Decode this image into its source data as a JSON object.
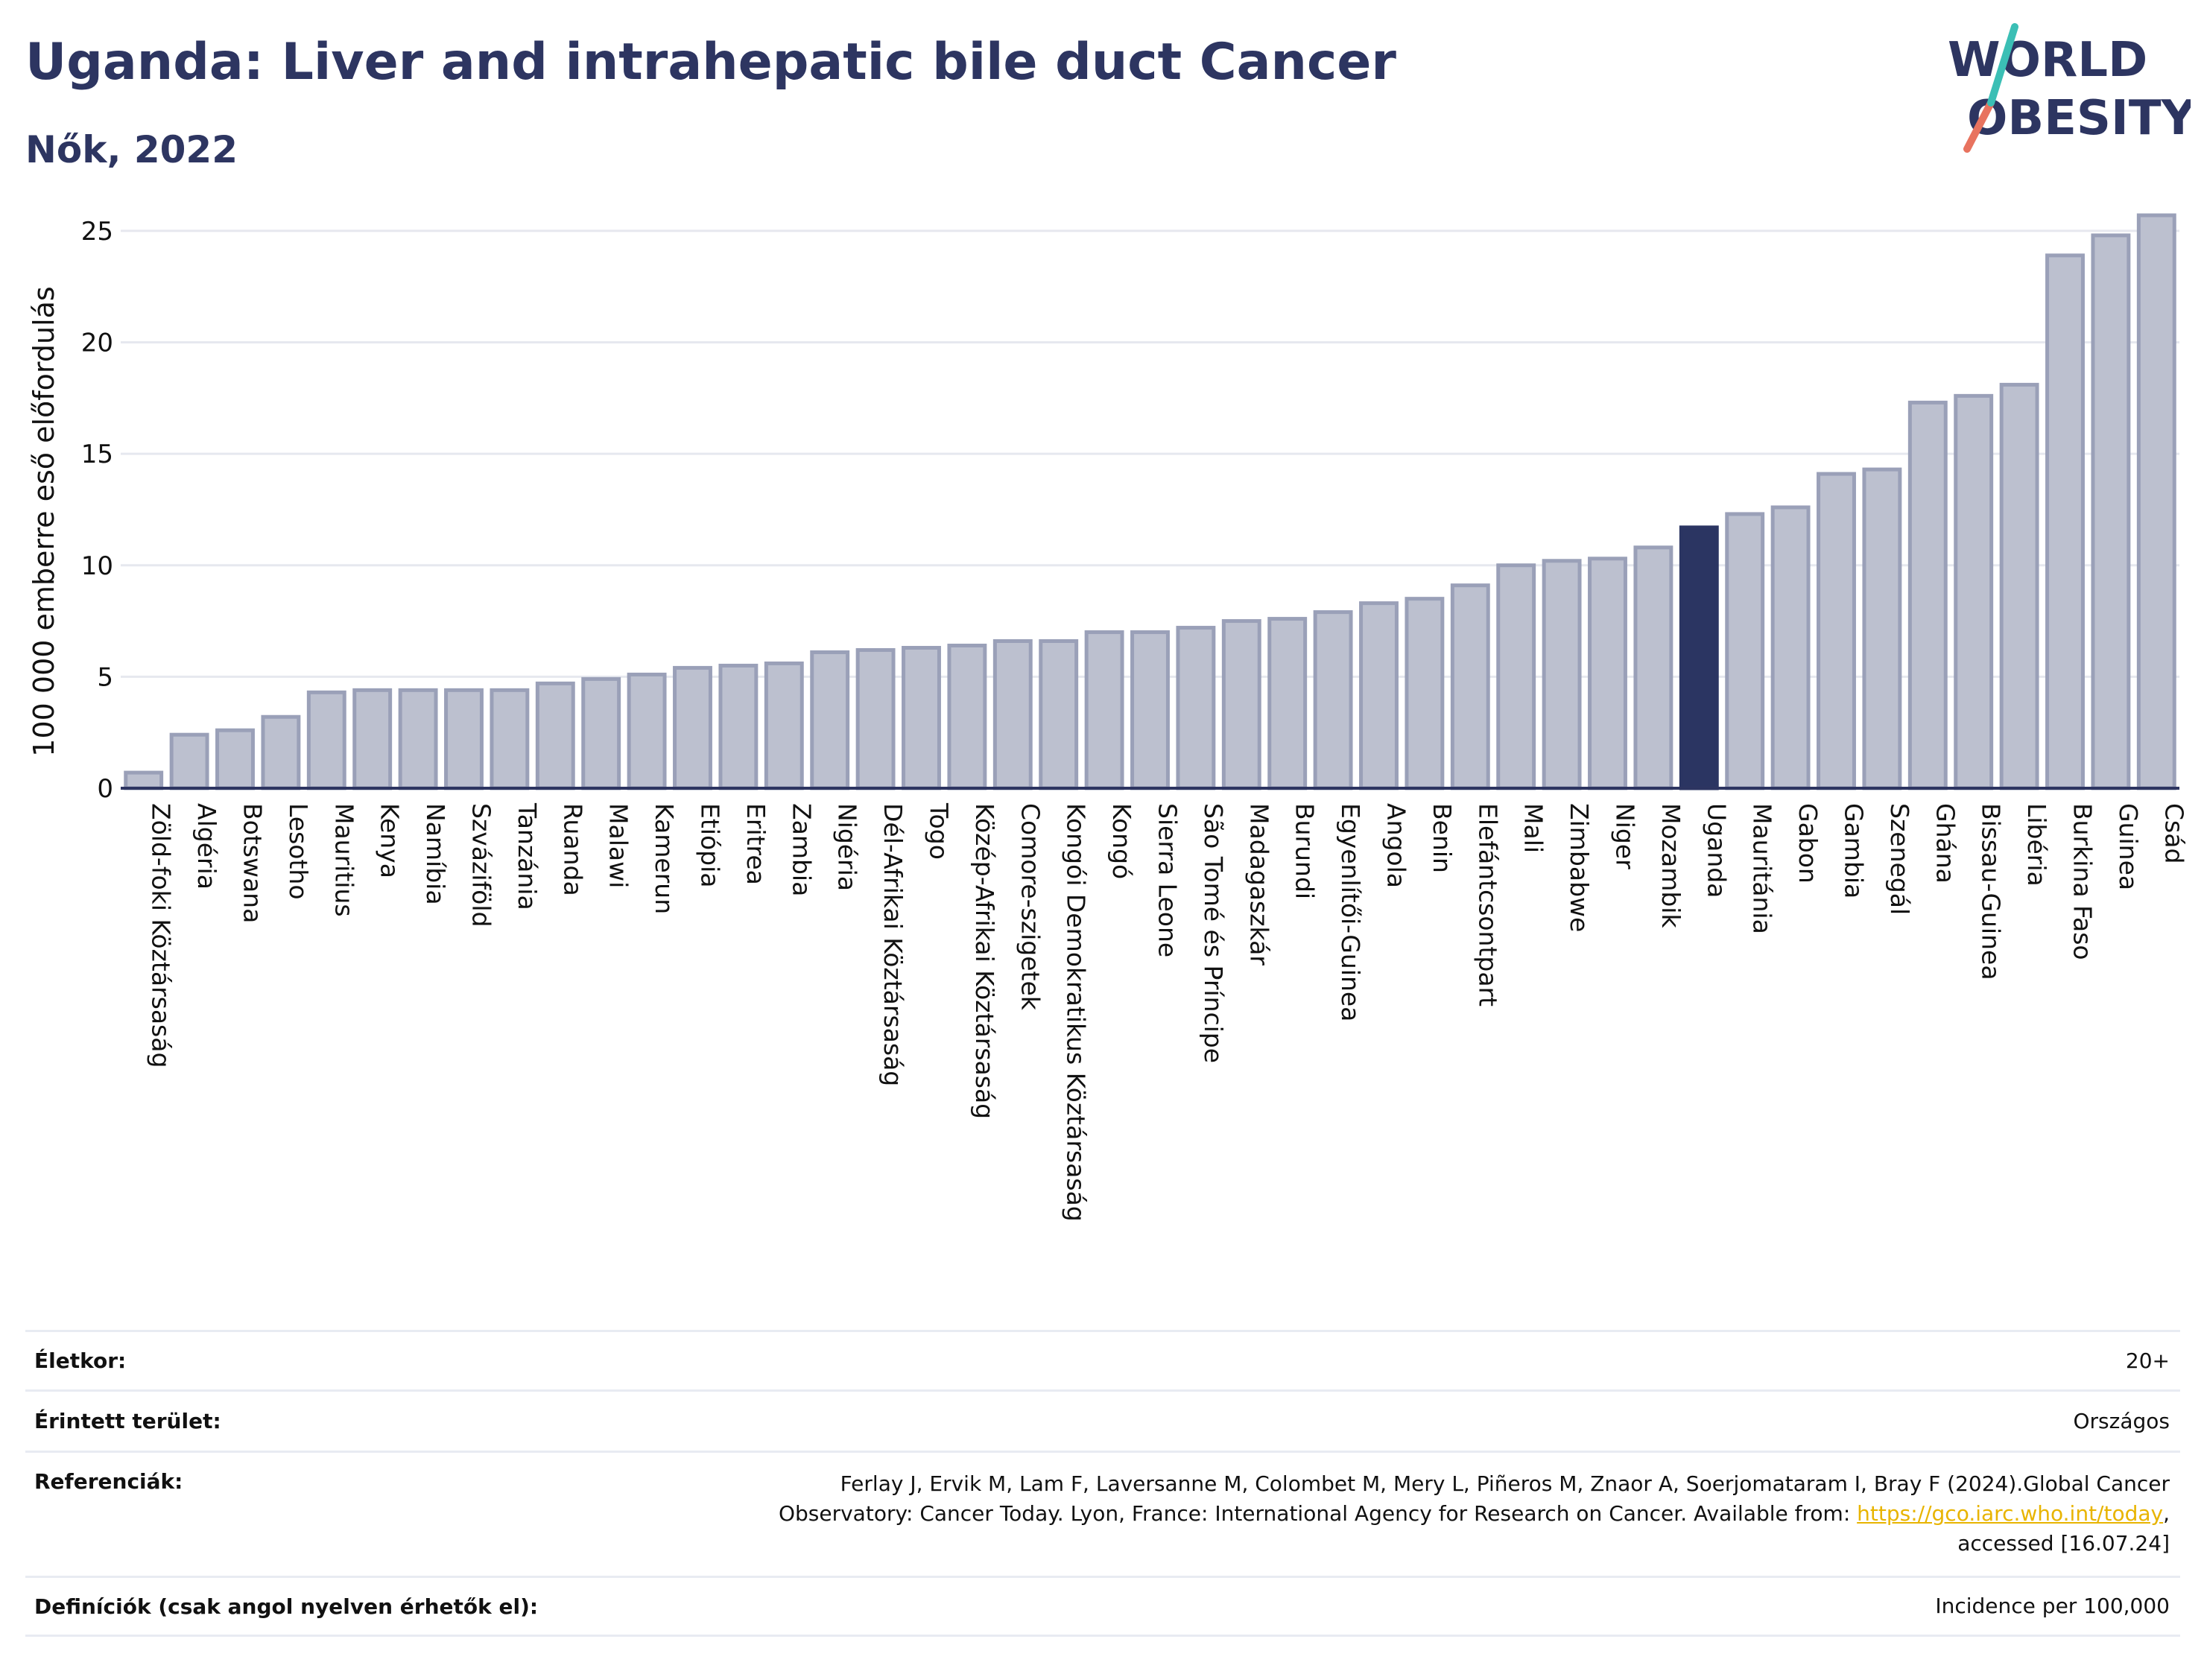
{
  "header": {
    "title": "Uganda: Liver and intrahepatic bile duct Cancer",
    "subtitle": "Nők, 2022"
  },
  "logo": {
    "line1": "WORLD",
    "line2": "OBESITY"
  },
  "colors": {
    "bar": "#bcc0cf",
    "bar_edge": "#9aa0b8",
    "highlight": "#2b3562",
    "grid": "#e6e8ef",
    "text": "#2d3561",
    "link": "#e8b400"
  },
  "chart_data": {
    "type": "bar",
    "ylabel": "100 000 emberre eső előfordulás",
    "ylim": [
      0,
      26
    ],
    "yticks": [
      0,
      5,
      10,
      15,
      20,
      25
    ],
    "grid": true,
    "highlight": "Uganda",
    "categories": [
      "Zöld-foki Köztársaság",
      "Algéria",
      "Botswana",
      "Lesotho",
      "Mauritius",
      "Kenya",
      "Namíbia",
      "Szváziföld",
      "Tanzánia",
      "Ruanda",
      "Malawi",
      "Kamerun",
      "Etiópia",
      "Eritrea",
      "Zambia",
      "Nigéria",
      "Dél-Afrikai Köztársaság",
      "Togo",
      "Közép-Afrikai Köztársaság",
      "Comore-szigetek",
      "Kongói Demokratikus Köztársaság",
      "Kongó",
      "Sierra Leone",
      "São Tomé és Príncipe",
      "Madagaszkár",
      "Burundi",
      "Egyenlítői-Guinea",
      "Angola",
      "Benin",
      "Elefántcsontpart",
      "Mali",
      "Zimbabwe",
      "Niger",
      "Mozambik",
      "Uganda",
      "Mauritánia",
      "Gabon",
      "Gambia",
      "Szenegál",
      "Ghána",
      "Bissau-Guinea",
      "Libéria",
      "Burkina Faso",
      "Guinea",
      "Csád"
    ],
    "values": [
      0.7,
      2.4,
      2.6,
      3.2,
      4.3,
      4.4,
      4.4,
      4.4,
      4.4,
      4.7,
      4.9,
      5.1,
      5.4,
      5.5,
      5.6,
      6.1,
      6.2,
      6.3,
      6.4,
      6.6,
      6.6,
      7.0,
      7.0,
      7.2,
      7.5,
      7.6,
      7.9,
      8.3,
      8.5,
      9.1,
      10.0,
      10.2,
      10.3,
      10.8,
      11.7,
      12.3,
      12.6,
      14.1,
      14.3,
      17.3,
      17.6,
      18.1,
      23.9,
      24.8,
      25.7
    ]
  },
  "meta": [
    {
      "label": "Életkor:",
      "value": "20+"
    },
    {
      "label": "Érintett terület:",
      "value": "Országos"
    },
    {
      "label": "Referenciák:",
      "value_line1": "Ferlay J, Ervik M, Lam F, Laversanne M, Colombet M, Mery L, Piñeros M, Znaor A, Soerjomataram I, Bray F (2024).Global Cancer",
      "value_line2_pre": "Observatory: Cancer Today. Lyon, France: International Agency for Research on Cancer. Available from: ",
      "link": "https://gco.iarc.who.int/today",
      "value_line2_post": ",",
      "value_line3": "accessed [16.07.24]"
    },
    {
      "label": "Definíciók (csak angol nyelven érhetők el):",
      "value": "Incidence per 100,000"
    }
  ]
}
